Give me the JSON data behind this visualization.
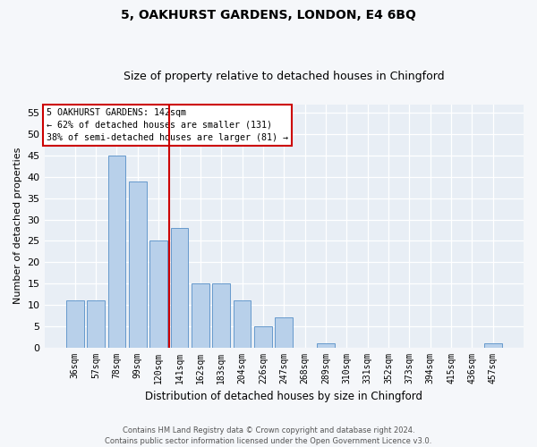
{
  "title": "5, OAKHURST GARDENS, LONDON, E4 6BQ",
  "subtitle": "Size of property relative to detached houses in Chingford",
  "xlabel": "Distribution of detached houses by size in Chingford",
  "ylabel": "Number of detached properties",
  "categories": [
    "36sqm",
    "57sqm",
    "78sqm",
    "99sqm",
    "120sqm",
    "141sqm",
    "162sqm",
    "183sqm",
    "204sqm",
    "226sqm",
    "247sqm",
    "268sqm",
    "289sqm",
    "310sqm",
    "331sqm",
    "352sqm",
    "373sqm",
    "394sqm",
    "415sqm",
    "436sqm",
    "457sqm"
  ],
  "values": [
    11,
    11,
    45,
    39,
    25,
    28,
    15,
    15,
    11,
    5,
    7,
    0,
    1,
    0,
    0,
    0,
    0,
    0,
    0,
    0,
    1
  ],
  "bar_color": "#b8d0ea",
  "bar_edge_color": "#6699cc",
  "property_line_index": 5,
  "property_line_color": "#cc0000",
  "ylim": [
    0,
    57
  ],
  "yticks": [
    0,
    5,
    10,
    15,
    20,
    25,
    30,
    35,
    40,
    45,
    50,
    55
  ],
  "annotation_title": "5 OAKHURST GARDENS: 142sqm",
  "annotation_line1": "← 62% of detached houses are smaller (131)",
  "annotation_line2": "38% of semi-detached houses are larger (81) →",
  "annotation_box_color": "#cc0000",
  "footer_line1": "Contains HM Land Registry data © Crown copyright and database right 2024.",
  "footer_line2": "Contains public sector information licensed under the Open Government Licence v3.0.",
  "plot_bg_color": "#e8eef5",
  "fig_bg_color": "#f5f7fa",
  "grid_color": "#ffffff",
  "title_fontsize": 10,
  "subtitle_fontsize": 9,
  "ylabel_fontsize": 8,
  "xlabel_fontsize": 8.5
}
